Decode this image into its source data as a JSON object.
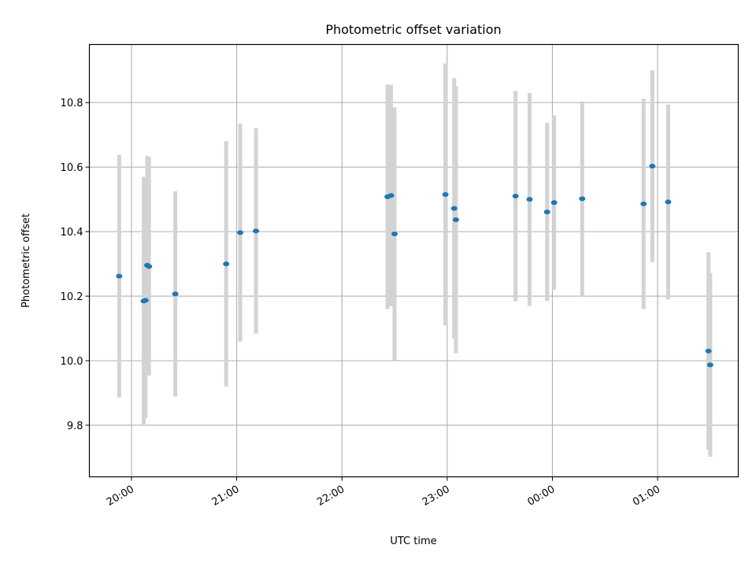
{
  "chart_data": {
    "type": "scatter",
    "title": "Photometric offset variation",
    "xlabel": "UTC time",
    "ylabel": "Photometric offset",
    "x_ticks": [
      "20:00",
      "21:00",
      "22:00",
      "23:00",
      "00:00",
      "01:00"
    ],
    "y_ticks": [
      "9.8",
      "10.0",
      "10.2",
      "10.4",
      "10.6",
      "10.8"
    ],
    "y_tick_values": [
      9.8,
      10.0,
      10.2,
      10.4,
      10.6,
      10.8
    ],
    "xlim": [
      "19:36",
      "01:46"
    ],
    "ylim": [
      9.64,
      10.98
    ],
    "grid": true,
    "marker_color": "#1f77b4",
    "errorbar_color": "#d3d3d3",
    "points": [
      {
        "x": "19:53",
        "y": 10.262,
        "err": 0.376
      },
      {
        "x": "20:07",
        "y": 10.185,
        "err": 0.385
      },
      {
        "x": "20:08",
        "y": 10.187,
        "err": 0.365
      },
      {
        "x": "20:09",
        "y": 10.296,
        "err": 0.339
      },
      {
        "x": "20:10",
        "y": 10.292,
        "err": 0.338
      },
      {
        "x": "20:25",
        "y": 10.207,
        "err": 0.318
      },
      {
        "x": "20:54",
        "y": 10.3,
        "err": 0.38
      },
      {
        "x": "21:02",
        "y": 10.397,
        "err": 0.338
      },
      {
        "x": "21:11",
        "y": 10.402,
        "err": 0.318
      },
      {
        "x": "22:26",
        "y": 10.508,
        "err": 0.348
      },
      {
        "x": "22:28",
        "y": 10.512,
        "err": 0.343
      },
      {
        "x": "22:30",
        "y": 10.393,
        "err": 0.392
      },
      {
        "x": "22:59",
        "y": 10.515,
        "err": 0.406
      },
      {
        "x": "23:04",
        "y": 10.472,
        "err": 0.404
      },
      {
        "x": "23:05",
        "y": 10.437,
        "err": 0.414
      },
      {
        "x": "23:39",
        "y": 10.51,
        "err": 0.326
      },
      {
        "x": "23:47",
        "y": 10.5,
        "err": 0.33
      },
      {
        "x": "23:57",
        "y": 10.461,
        "err": 0.276
      },
      {
        "x": "00:01",
        "y": 10.49,
        "err": 0.27
      },
      {
        "x": "00:17",
        "y": 10.502,
        "err": 0.302
      },
      {
        "x": "00:52",
        "y": 10.486,
        "err": 0.326
      },
      {
        "x": "00:57",
        "y": 10.603,
        "err": 0.297
      },
      {
        "x": "01:06",
        "y": 10.492,
        "err": 0.302
      },
      {
        "x": "01:29",
        "y": 10.03,
        "err": 0.306
      },
      {
        "x": "01:30",
        "y": 9.987,
        "err": 0.285
      }
    ]
  }
}
